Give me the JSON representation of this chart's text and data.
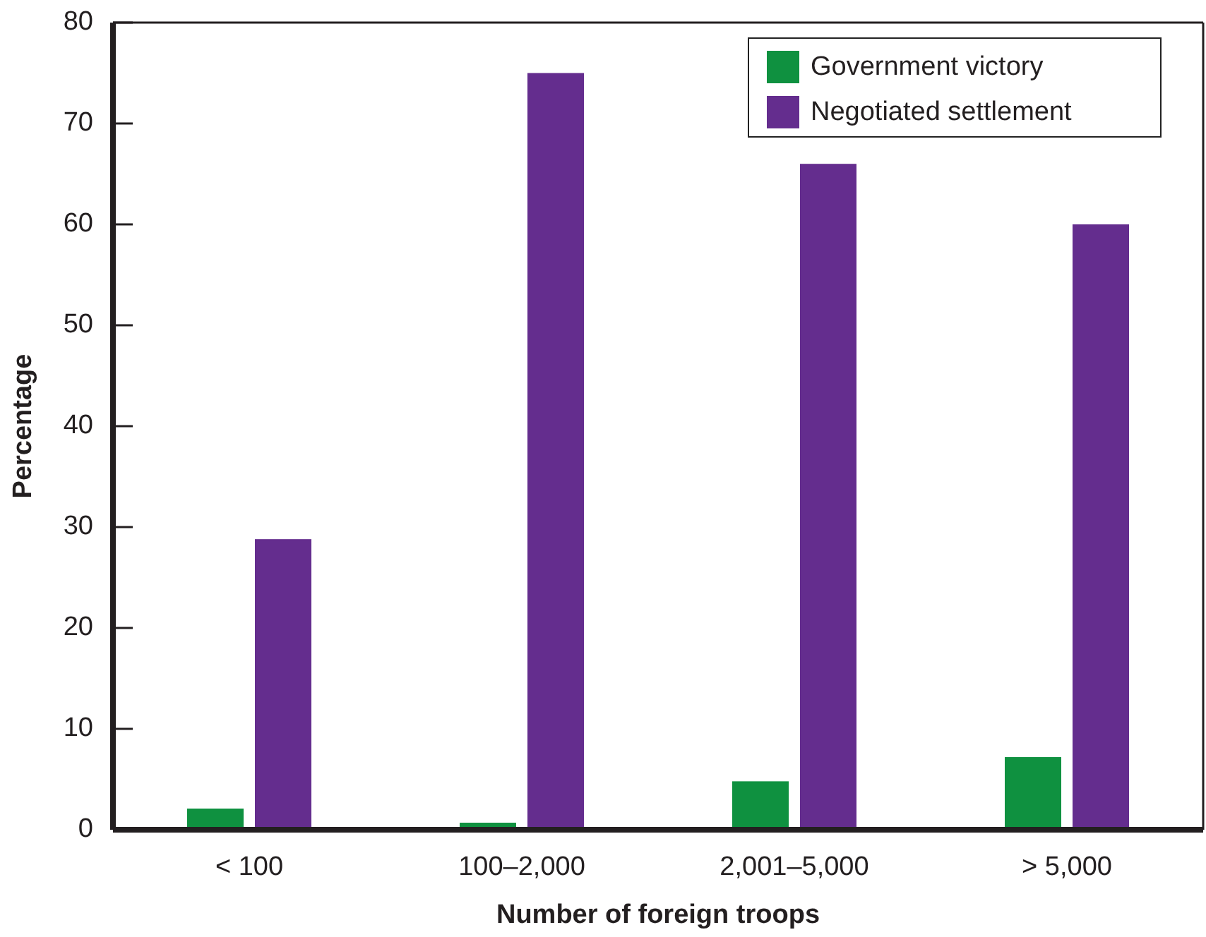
{
  "chart_data": {
    "type": "bar",
    "xlabel": "Number of foreign troops",
    "ylabel": "Percentage",
    "categories": [
      "< 100",
      "100–2,000",
      "2,001–5,000",
      "> 5,000"
    ],
    "series": [
      {
        "name": "Government victory",
        "color": "#0f9140",
        "values": [
          2.1,
          0.7,
          4.8,
          7.2
        ]
      },
      {
        "name": "Negotiated settlement",
        "color": "#642d8e",
        "values": [
          28.8,
          75,
          66,
          60
        ]
      }
    ],
    "ylim": [
      0,
      80
    ],
    "yticks": [
      0,
      10,
      20,
      30,
      40,
      50,
      60,
      70,
      80
    ],
    "legend": "top right"
  }
}
